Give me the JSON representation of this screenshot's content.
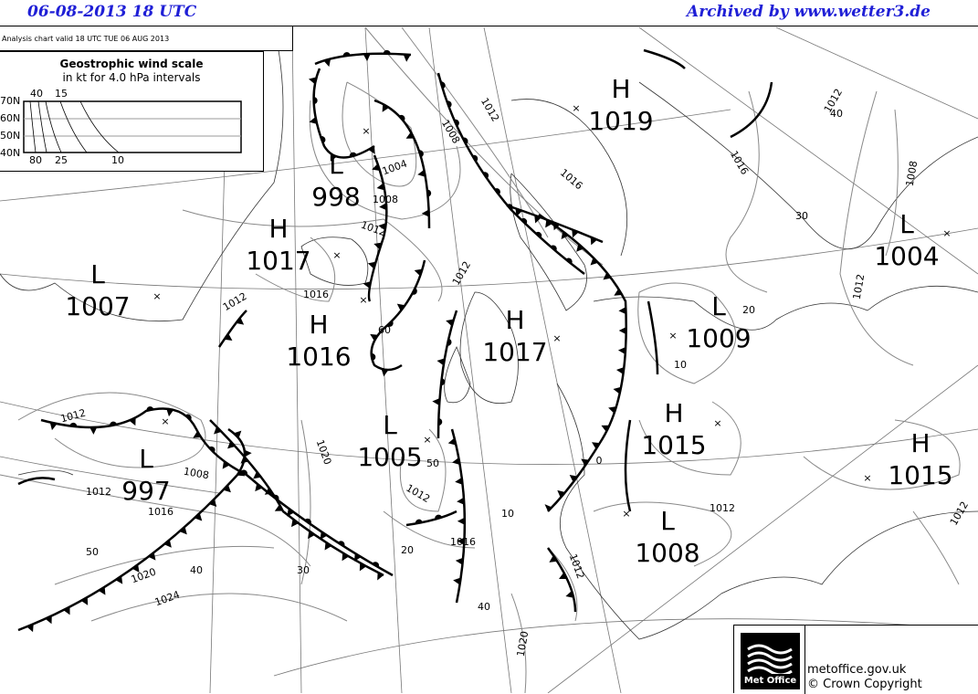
{
  "header": {
    "date_time": "06-08-2013   18 UTC",
    "archive": "Archived by www.wetter3.de"
  },
  "valid_text": "Analysis chart  valid 18 UTC TUE 06  AUG 2013",
  "wind_scale": {
    "title": "Geostrophic wind scale",
    "subtitle": "in kt for 4.0 hPa intervals",
    "lat_labels": [
      "70N",
      "60N",
      "50N",
      "40N"
    ],
    "top_labels": [
      "40",
      "15"
    ],
    "bottom_labels": [
      "80",
      "25",
      "10"
    ]
  },
  "pressure_centers": [
    {
      "type": "H",
      "value": "1019"
    },
    {
      "type": "L",
      "value": "998"
    },
    {
      "type": "H",
      "value": "1017"
    },
    {
      "type": "L",
      "value": "1007"
    },
    {
      "type": "H",
      "value": "1016"
    },
    {
      "type": "H",
      "value": "1017"
    },
    {
      "type": "L",
      "value": "1009"
    },
    {
      "type": "L",
      "value": "1004"
    },
    {
      "type": "L",
      "value": "1005"
    },
    {
      "type": "H",
      "value": "1015"
    },
    {
      "type": "L",
      "value": "997"
    },
    {
      "type": "L",
      "value": "1008"
    },
    {
      "type": "H",
      "value": "1015"
    }
  ],
  "isobar_labels": [
    "1012",
    "1008",
    "1004",
    "1008",
    "1012",
    "1012",
    "1016",
    "1016",
    "1012",
    "1008",
    "1012",
    "1012",
    "1016",
    "1012",
    "1008",
    "1012",
    "1016",
    "1020",
    "1024",
    "1020",
    "1012",
    "1016",
    "1012",
    "1012",
    "1012",
    "1020"
  ],
  "latlon_labels": [
    "40",
    "20",
    "10",
    "60",
    "50",
    "40",
    "30",
    "20",
    "10",
    "0",
    "40",
    "50",
    "30"
  ],
  "footer": {
    "brand": "Met Office",
    "site": "metoffice.gov.uk",
    "copyright": "© Crown Copyright"
  }
}
